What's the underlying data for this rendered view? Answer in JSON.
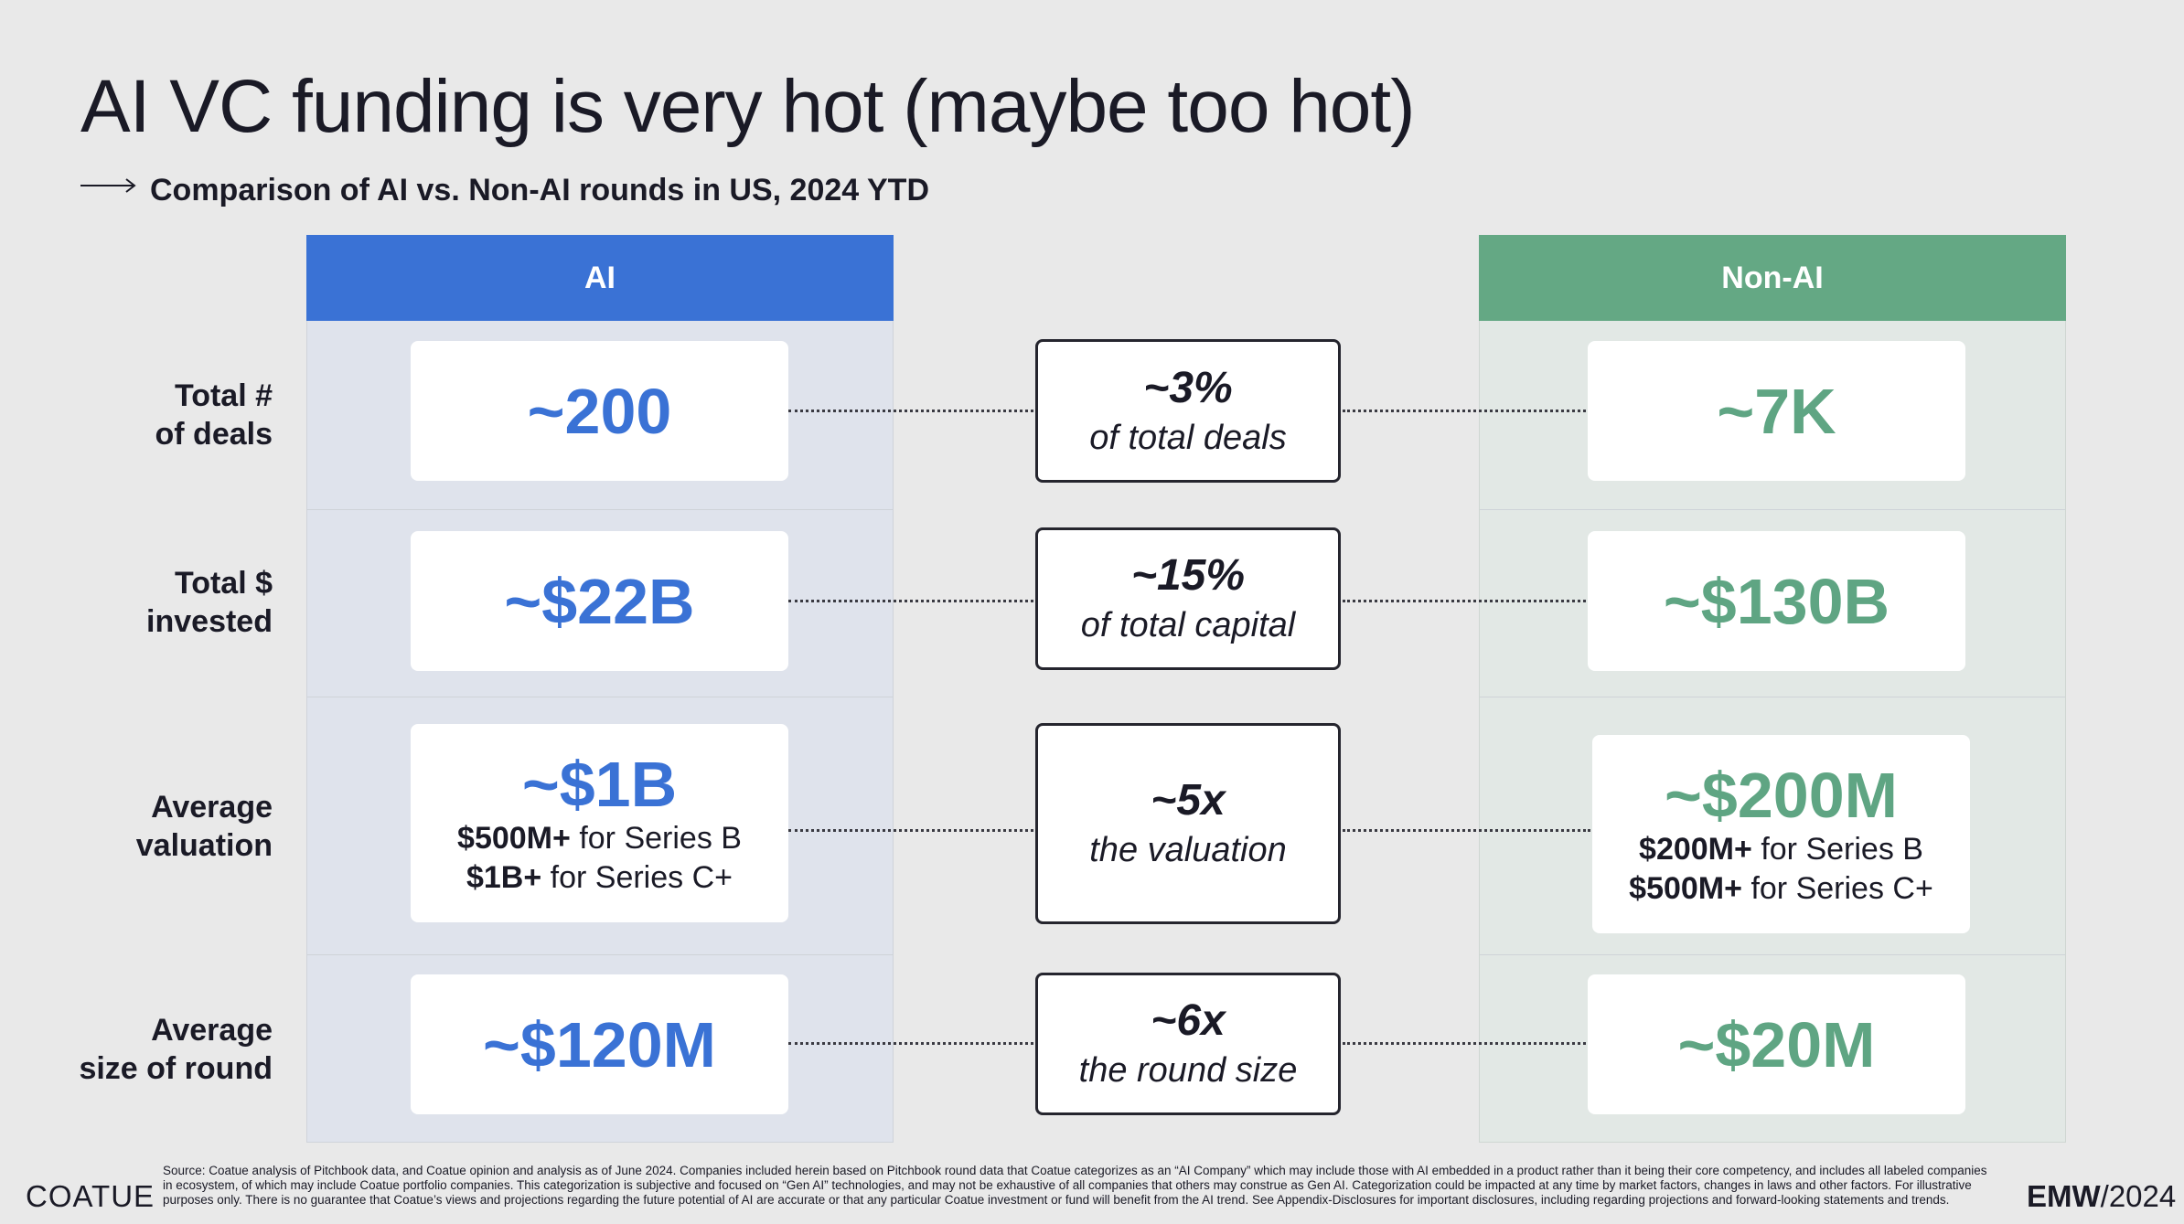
{
  "title": "AI VC funding is very hot (maybe too hot)",
  "subtitle": "Comparison of AI vs. Non-AI rounds in US, 2024 YTD",
  "columns": {
    "ai": "AI",
    "non_ai": "Non-AI"
  },
  "rows": [
    {
      "label_l1": "Total #",
      "label_l2": "of deals",
      "ai_value": "~200",
      "ratio": "~3%",
      "ratio_desc": "of total deals",
      "non_ai_value": "~7K"
    },
    {
      "label_l1": "Total $",
      "label_l2": "invested",
      "ai_value": "~$22B",
      "ratio": "~15%",
      "ratio_desc": "of total capital",
      "non_ai_value": "~$130B"
    },
    {
      "label_l1": "Average",
      "label_l2": "valuation",
      "ai_value": "~$1B",
      "ai_sub1_bold": "$500M+",
      "ai_sub1_text": " for Series B",
      "ai_sub2_bold": "$1B+",
      "ai_sub2_text": " for Series C+",
      "ratio": "~5x",
      "ratio_desc": "the valuation",
      "non_ai_value": "~$200M",
      "non_ai_sub1_bold": "$200M+",
      "non_ai_sub1_text": " for Series B",
      "non_ai_sub2_bold": "$500M+",
      "non_ai_sub2_text": " for Series C+"
    },
    {
      "label_l1": "Average",
      "label_l2": "size of round",
      "ai_value": "~$120M",
      "ratio": "~6x",
      "ratio_desc": "the round size",
      "non_ai_value": "~$20M"
    }
  ],
  "footer": {
    "logo": "COATUE",
    "source": "Source: Coatue analysis of Pitchbook data, and Coatue opinion and analysis as of June 2024. Companies included herein based on Pitchbook round data that Coatue categorizes as an “AI Company” which may include those with AI embedded in a product rather than it being their core competency, and includes all labeled companies in ecosystem, of which may include Coatue portfolio companies. This categorization is subjective and focused on “Gen AI” technologies, and may not be exhaustive of all companies that others may construe as Gen AI. Categorization could be impacted at any time by market factors, changes in laws and other factors. For illustrative purposes only. There is no guarantee that Coatue’s views and projections regarding the future potential of AI are accurate or that any particular Coatue investment or fund will benefit from the AI trend. See Appendix-Disclosures for important disclosures, including regarding projections and forward-looking statements and trends.",
    "emw_bold": "EMW",
    "emw_rest": "/2024"
  },
  "colors": {
    "ai_blue": "#3a72d5",
    "non_ai_green": "#64a884",
    "background": "#e9e9e9"
  }
}
